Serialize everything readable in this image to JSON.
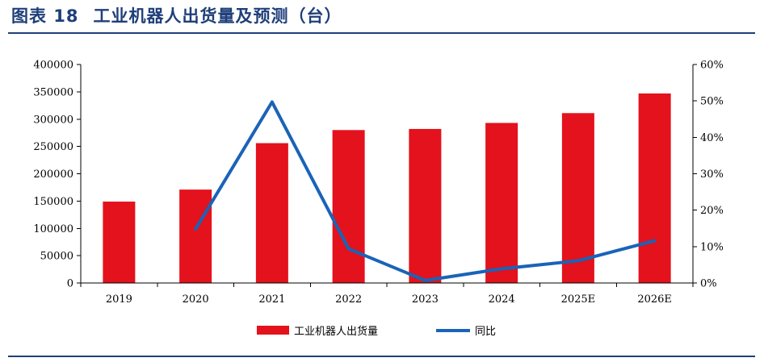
{
  "header": {
    "figure_no": "图表 18",
    "title": "工业机器人出货量及预测（台）"
  },
  "chart_data": {
    "type": "bar",
    "categories": [
      "2019",
      "2020",
      "2021",
      "2022",
      "2023",
      "2024",
      "2025E",
      "2026E"
    ],
    "series": [
      {
        "name": "工业机器人出货量",
        "type": "bar",
        "axis": "left",
        "color": "#e3121c",
        "values": [
          149000,
          171000,
          256000,
          280000,
          282000,
          293000,
          311000,
          347000
        ]
      },
      {
        "name": "同比",
        "type": "line",
        "axis": "right",
        "color": "#1a63b8",
        "values": [
          null,
          14.8,
          49.7,
          9.4,
          0.7,
          3.9,
          6.1,
          11.6
        ]
      }
    ],
    "ylim_left": [
      0,
      400000
    ],
    "ylim_right": [
      0,
      60
    ],
    "yticks_left": [
      "0",
      "50000",
      "100000",
      "150000",
      "200000",
      "250000",
      "300000",
      "350000",
      "400000"
    ],
    "yticks_right": [
      "0%",
      "10%",
      "20%",
      "30%",
      "40%",
      "50%",
      "60%"
    ],
    "grid": false,
    "legend_position": "bottom"
  }
}
